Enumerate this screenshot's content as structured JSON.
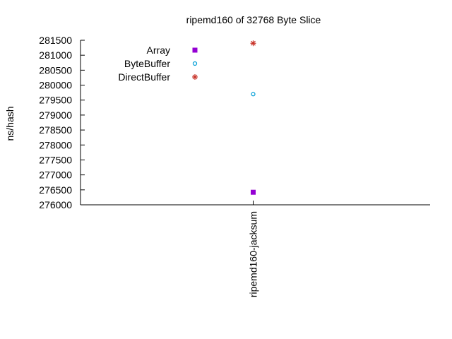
{
  "chart_data": {
    "type": "scatter",
    "title": "ripemd160 of 32768 Byte Slice",
    "xlabel": "",
    "ylabel": "ns/hash",
    "categories": [
      "ripemd160-jacksum"
    ],
    "ylim": [
      276000,
      281500
    ],
    "yticks": [
      276000,
      276500,
      277000,
      277500,
      278000,
      278500,
      279000,
      279500,
      280000,
      280500,
      281000,
      281500
    ],
    "grid": false,
    "legend_position": "top-left",
    "series": [
      {
        "name": "Array",
        "values": [
          276420
        ],
        "color": "#9400d3",
        "marker": "filled-square"
      },
      {
        "name": "ByteBuffer",
        "values": [
          279700
        ],
        "color": "#009ed6",
        "marker": "open-circle"
      },
      {
        "name": "DirectBuffer",
        "values": [
          281400
        ],
        "color": "#c8342a",
        "marker": "asterisk"
      }
    ]
  }
}
